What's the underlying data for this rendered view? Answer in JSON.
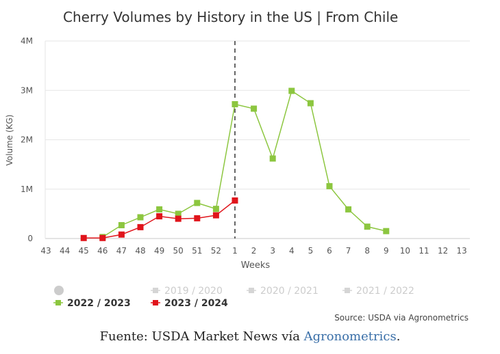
{
  "chart_data": {
    "type": "line",
    "title": "Cherry Volumes by History in the US | From Chile",
    "xlabel": "Weeks",
    "ylabel": "Volume (KG)",
    "categories": [
      "43",
      "44",
      "45",
      "46",
      "47",
      "48",
      "49",
      "50",
      "51",
      "52",
      "1",
      "2",
      "3",
      "4",
      "5",
      "6",
      "7",
      "8",
      "9",
      "10",
      "11",
      "12",
      "13"
    ],
    "y_ticks": [
      "0",
      "1M",
      "2M",
      "3M",
      "4M"
    ],
    "ylim": [
      0,
      4000000
    ],
    "divider_category": "1",
    "grid": true,
    "series": [
      {
        "name": "2022 / 2023",
        "color": "#8cc63f",
        "values": [
          null,
          null,
          null,
          30000,
          270000,
          430000,
          590000,
          500000,
          720000,
          600000,
          2720000,
          2630000,
          1620000,
          2990000,
          2740000,
          1060000,
          590000,
          240000,
          150000,
          null,
          null,
          null,
          null
        ]
      },
      {
        "name": "2023 / 2024",
        "color": "#e0141b",
        "values": [
          null,
          null,
          10000,
          10000,
          80000,
          230000,
          450000,
          400000,
          410000,
          470000,
          770000,
          null,
          null,
          null,
          null,
          null,
          null,
          null,
          null,
          null,
          null,
          null,
          null
        ]
      }
    ],
    "legend": {
      "dot_item": "",
      "inactive": [
        "2019 / 2020",
        "2020 / 2021",
        "2021 / 2022"
      ],
      "active": [
        "2022 / 2023",
        "2023 / 2024"
      ],
      "placement": "bottom-left"
    },
    "source": "Source: USDA via Agronometrics"
  },
  "caption": {
    "prefix": "Fuente: USDA Market News vía ",
    "link": "Agronometrics",
    "suffix": "."
  }
}
